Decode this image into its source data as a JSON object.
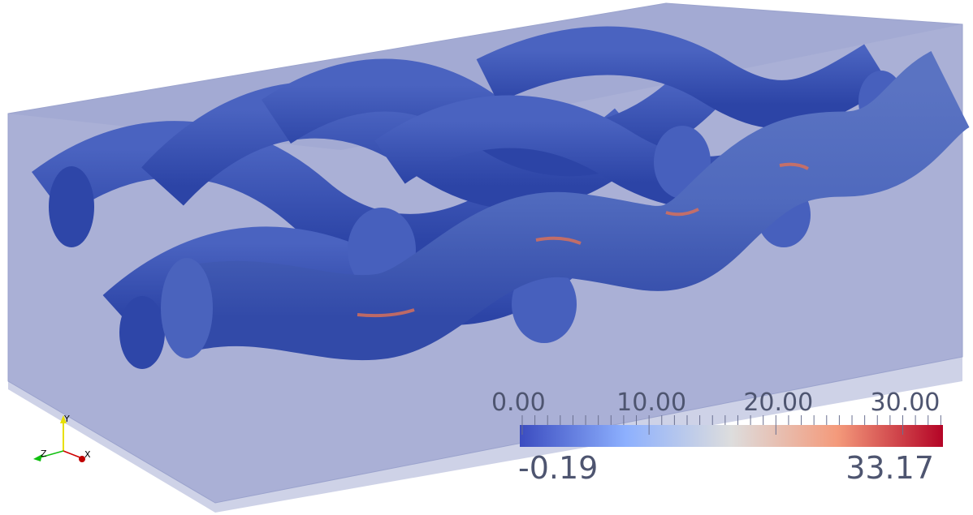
{
  "scene": {
    "background": "#ffffff",
    "box_color": "#8f97c4",
    "tube_color": "#3b55b5"
  },
  "color_legend": {
    "colormap": "cool-to-warm",
    "colors": [
      "#3b4cc0",
      "#8db0fe",
      "#dddddd",
      "#f49a7b",
      "#b40426"
    ],
    "range_min": -0.19,
    "range_max": 33.17,
    "range_min_label": "-0.19",
    "range_max_label": "33.17",
    "major_ticks": [
      0,
      10,
      20,
      30
    ],
    "tick_labels": [
      "0.00",
      "10.00",
      "20.00",
      "30.00"
    ],
    "minor_tick_step": 1
  },
  "orientation_axes": {
    "x_label": "X",
    "y_label": "Y",
    "z_label": "Z",
    "x_color": "#d00000",
    "y_color": "#e8e000",
    "z_color": "#10c010"
  }
}
